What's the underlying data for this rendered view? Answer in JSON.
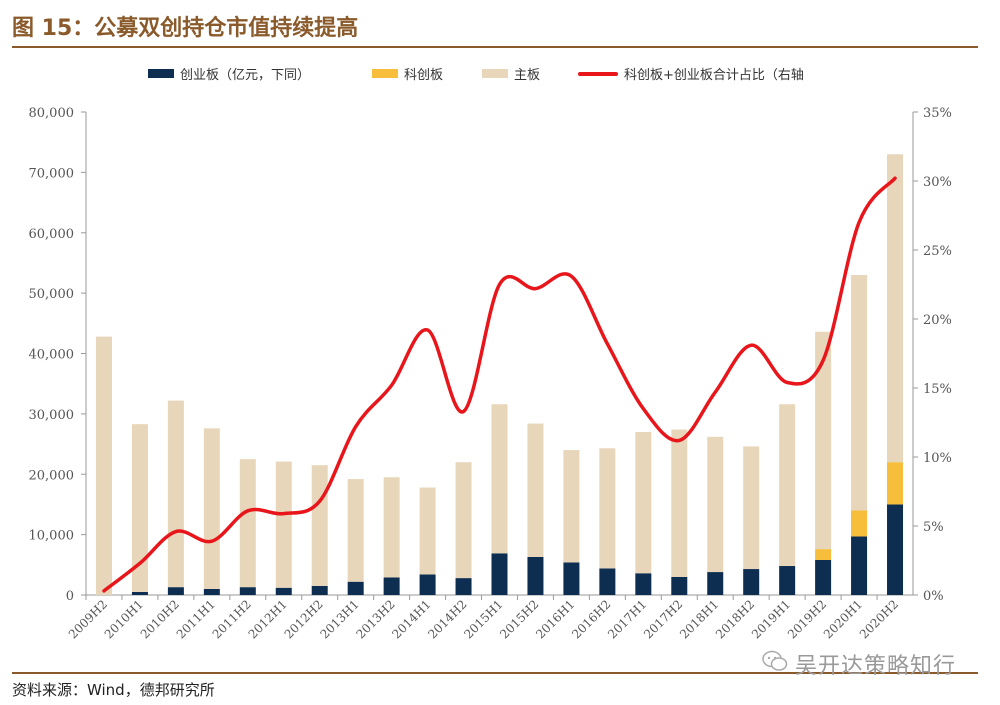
{
  "figure": {
    "title": "图 15：公募双创持仓市值持续提高",
    "source": "资料来源：Wind，德邦研究所",
    "watermark": "吴开达策略知行"
  },
  "colors": {
    "chinext": "#0D2E50",
    "star": "#F6BE3A",
    "main": "#E8D6BA",
    "line": "#E8161B",
    "brand": "#8B5A2B"
  },
  "chart_data": {
    "type": "bar",
    "stacked": true,
    "categories": [
      "2009H2",
      "2010H1",
      "2010H2",
      "2011H1",
      "2011H2",
      "2012H1",
      "2012H2",
      "2013H1",
      "2013H2",
      "2014H1",
      "2014H2",
      "2015H1",
      "2015H2",
      "2016H1",
      "2016H2",
      "2017H1",
      "2017H2",
      "2018H1",
      "2018H2",
      "2019H1",
      "2019H2",
      "2020H1",
      "2020H2"
    ],
    "series": [
      {
        "name": "创业板（亿元，下同）",
        "type": "bar",
        "axis": "left",
        "values": [
          0,
          500,
          1300,
          1000,
          1300,
          1200,
          1500,
          2200,
          2900,
          3400,
          2800,
          6900,
          6300,
          5400,
          4400,
          3600,
          3000,
          3800,
          4300,
          4800,
          5800,
          9700,
          15000
        ]
      },
      {
        "name": "科创板",
        "type": "bar",
        "axis": "left",
        "values": [
          0,
          0,
          0,
          0,
          0,
          0,
          0,
          0,
          0,
          0,
          0,
          0,
          0,
          0,
          0,
          0,
          0,
          0,
          0,
          0,
          1800,
          4300,
          7000
        ]
      },
      {
        "name": "主板",
        "type": "bar",
        "axis": "left",
        "values": [
          42800,
          27800,
          30900,
          26600,
          21200,
          20900,
          20000,
          17000,
          16600,
          14400,
          19200,
          24700,
          22100,
          18600,
          19900,
          23400,
          24400,
          22400,
          20300,
          26800,
          36000,
          39000,
          51000
        ]
      },
      {
        "name": "科创板+创业板合计占比（右轴",
        "type": "line",
        "axis": "right",
        "values": [
          0.3,
          2.3,
          4.6,
          3.9,
          6.1,
          5.9,
          6.8,
          12.2,
          15.2,
          19.2,
          13.3,
          22.5,
          22.2,
          23.1,
          18.2,
          13.5,
          11.2,
          14.7,
          18.1,
          15.4,
          17.0,
          27.0,
          30.2
        ]
      }
    ],
    "ylim": [
      0,
      80000
    ],
    "y2lim": [
      0,
      35
    ],
    "yticks": [
      "0",
      "10,000",
      "20,000",
      "30,000",
      "40,000",
      "50,000",
      "60,000",
      "70,000",
      "80,000"
    ],
    "y2ticks": [
      "0%",
      "5%",
      "10%",
      "15%",
      "20%",
      "25%",
      "30%",
      "35%"
    ],
    "legend_position": "top"
  }
}
